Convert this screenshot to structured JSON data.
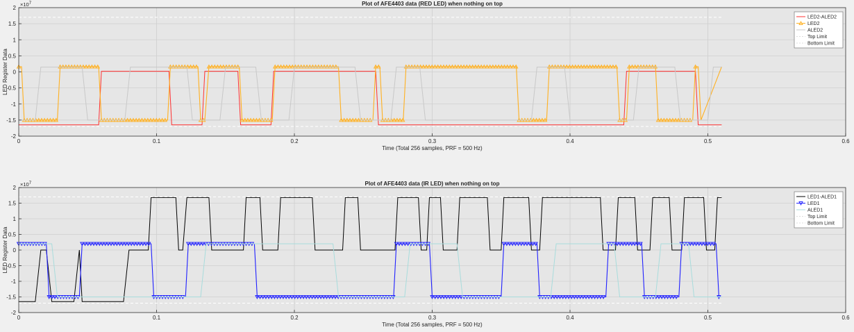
{
  "colors": {
    "figure_bg": "#f0f0f0",
    "axes_bg": "#e6e6e6",
    "grid": "#cfcfcf",
    "axis": "#333333",
    "text": "#222222"
  },
  "chart_data": [
    {
      "type": "line",
      "title": "Plot of AFE4403 data (RED LED) when nothing on top",
      "xlabel": "Time (Total 256 samples, PRF = 500 Hz)",
      "ylabel": "LED Register Data",
      "exponent_label": "10",
      "exponent_power": "7",
      "xlim": [
        0,
        0.6
      ],
      "ylim": [
        -20000000,
        20000000
      ],
      "x_ticks": [
        0,
        0.1,
        0.2,
        0.3,
        0.4,
        0.5,
        0.6
      ],
      "x_tick_labels": [
        "0",
        "0.1",
        "0.2",
        "0.3",
        "0.4",
        "0.5",
        "0.6"
      ],
      "y_ticks": [
        -20000000,
        -15000000,
        -10000000,
        -5000000,
        0,
        5000000,
        10000000,
        15000000,
        20000000
      ],
      "y_tick_labels": [
        "-2",
        "-1.5",
        "-1",
        "-0.5",
        "0",
        "0.5",
        "1",
        "1.5",
        "2"
      ],
      "grid": true,
      "legend_position": "top-right",
      "series": [
        {
          "name": "LED2-ALED2",
          "color": "#ff3030",
          "marker": "none",
          "x": [
            0,
            0.058,
            0.06,
            0.109,
            0.111,
            0.133,
            0.135,
            0.159,
            0.161,
            0.183,
            0.185,
            0.259,
            0.261,
            0.439,
            0.441,
            0.491,
            0.493,
            0.51
          ],
          "y": [
            -16500000,
            -16500000,
            200000,
            200000,
            -16500000,
            -16500000,
            200000,
            200000,
            -16500000,
            -16500000,
            200000,
            200000,
            -16500000,
            -16500000,
            200000,
            200000,
            -16500000,
            -16500000
          ]
        },
        {
          "name": "LED2",
          "color": "#ffb020",
          "marker": "triangle-up",
          "x": [
            0,
            0.002,
            0.004,
            0.028,
            0.03,
            0.058,
            0.06,
            0.108,
            0.11,
            0.13,
            0.132,
            0.135,
            0.138,
            0.16,
            0.162,
            0.184,
            0.186,
            0.232,
            0.234,
            0.257,
            0.259,
            0.262,
            0.264,
            0.279,
            0.281,
            0.361,
            0.363,
            0.383,
            0.385,
            0.434,
            0.436,
            0.441,
            0.443,
            0.462,
            0.464,
            0.489,
            0.491,
            0.493,
            0.495,
            0.51
          ],
          "y": [
            1600000,
            1600000,
            -15000000,
            -15000000,
            1600000,
            1600000,
            -15000000,
            -15000000,
            1600000,
            1600000,
            -15000000,
            -15000000,
            1600000,
            1600000,
            -15000000,
            -15000000,
            1600000,
            1600000,
            -15000000,
            -15000000,
            1600000,
            1600000,
            -15000000,
            -15000000,
            1600000,
            1600000,
            -15000000,
            -15000000,
            1600000,
            1600000,
            -15000000,
            -15000000,
            1600000,
            1600000,
            -15000000,
            -15000000,
            1600000,
            1600000,
            -15000000,
            1600000
          ]
        },
        {
          "name": "ALED2",
          "color": "#c8c8c8",
          "marker": "none",
          "x": [
            0,
            0.012,
            0.016,
            0.046,
            0.05,
            0.077,
            0.081,
            0.122,
            0.126,
            0.146,
            0.15,
            0.172,
            0.176,
            0.196,
            0.2,
            0.244,
            0.248,
            0.27,
            0.274,
            0.291,
            0.295,
            0.372,
            0.376,
            0.396,
            0.4,
            0.446,
            0.45,
            0.476,
            0.48,
            0.5,
            0.504,
            0.51
          ],
          "y": [
            -15000000,
            -15000000,
            1500000,
            1500000,
            -15000000,
            -15000000,
            1500000,
            1500000,
            -15000000,
            -15000000,
            1500000,
            1500000,
            -15000000,
            -15000000,
            1500000,
            1500000,
            -15000000,
            -15000000,
            1500000,
            1500000,
            -15000000,
            -15000000,
            1500000,
            1500000,
            -15000000,
            -15000000,
            1500000,
            1500000,
            -15000000,
            -15000000,
            1500000,
            1500000
          ]
        },
        {
          "name": "Top Limit",
          "color": "#ffffff",
          "marker": "none",
          "dashed": true,
          "x": [
            0,
            0.51
          ],
          "y": [
            17000000,
            17000000
          ]
        },
        {
          "name": "Bottom Limit",
          "color": "#ffffff",
          "marker": "none",
          "dashed": true,
          "x": [
            0,
            0.51
          ],
          "y": [
            -17000000,
            -17000000
          ]
        }
      ]
    },
    {
      "type": "line",
      "title": "Plot of AFE4403 data (IR LED) when nothing on top",
      "xlabel": "Time (Total 256 samples, PRF = 500 Hz)",
      "ylabel": "LED Register Data",
      "exponent_label": "10",
      "exponent_power": "7",
      "xlim": [
        0,
        0.6
      ],
      "ylim": [
        -20000000,
        20000000
      ],
      "x_ticks": [
        0,
        0.1,
        0.2,
        0.3,
        0.4,
        0.5,
        0.6
      ],
      "x_tick_labels": [
        "0",
        "0.1",
        "0.2",
        "0.3",
        "0.4",
        "0.5",
        "0.6"
      ],
      "y_ticks": [
        -20000000,
        -15000000,
        -10000000,
        -5000000,
        0,
        5000000,
        10000000,
        15000000,
        20000000
      ],
      "y_tick_labels": [
        "-2",
        "-1.5",
        "-1",
        "-0.5",
        "0",
        "0.5",
        "1",
        "1.5",
        "2"
      ],
      "grid": true,
      "legend_position": "top-right",
      "series": [
        {
          "name": "LED1-ALED1",
          "color": "#000000",
          "marker": "none",
          "x": [
            0,
            0.012,
            0.016,
            0.02,
            0.024,
            0.04,
            0.044,
            0.046,
            0.05,
            0.076,
            0.08,
            0.094,
            0.096,
            0.114,
            0.116,
            0.119,
            0.122,
            0.138,
            0.14,
            0.163,
            0.165,
            0.175,
            0.177,
            0.188,
            0.19,
            0.213,
            0.215,
            0.235,
            0.237,
            0.246,
            0.248,
            0.273,
            0.275,
            0.29,
            0.292,
            0.296,
            0.298,
            0.306,
            0.308,
            0.318,
            0.32,
            0.34,
            0.342,
            0.35,
            0.352,
            0.37,
            0.372,
            0.378,
            0.38,
            0.422,
            0.424,
            0.433,
            0.435,
            0.447,
            0.449,
            0.458,
            0.46,
            0.472,
            0.474,
            0.481,
            0.483,
            0.497,
            0.499,
            0.505,
            0.507,
            0.51
          ],
          "y": [
            -16500000,
            -16500000,
            0,
            0,
            -16500000,
            -16500000,
            0,
            -16500000,
            -16500000,
            -16500000,
            0,
            0,
            16800000,
            16800000,
            0,
            0,
            16800000,
            16800000,
            0,
            0,
            16800000,
            16800000,
            0,
            0,
            16800000,
            16800000,
            0,
            0,
            16800000,
            16800000,
            0,
            0,
            16800000,
            16800000,
            0,
            0,
            16800000,
            16800000,
            0,
            0,
            16800000,
            16800000,
            0,
            0,
            16800000,
            16800000,
            0,
            0,
            16800000,
            16800000,
            0,
            0,
            16800000,
            16800000,
            0,
            0,
            16800000,
            16800000,
            0,
            0,
            16800000,
            16800000,
            0,
            0,
            16800000,
            16800000
          ]
        },
        {
          "name": "LED1",
          "color": "#2020ff",
          "marker": "triangle-down",
          "x": [
            0,
            0.02,
            0.022,
            0.044,
            0.046,
            0.096,
            0.098,
            0.121,
            0.123,
            0.171,
            0.173,
            0.272,
            0.274,
            0.298,
            0.3,
            0.35,
            0.352,
            0.376,
            0.378,
            0.426,
            0.428,
            0.452,
            0.454,
            0.479,
            0.481,
            0.506,
            0.508,
            0.51
          ],
          "y": [
            2000000,
            2000000,
            -15000000,
            -15000000,
            2000000,
            2000000,
            -15000000,
            -15000000,
            2000000,
            2000000,
            -15000000,
            -15000000,
            2000000,
            2000000,
            -15000000,
            -15000000,
            2000000,
            2000000,
            -15000000,
            -15000000,
            2000000,
            2000000,
            -15000000,
            -15000000,
            2000000,
            2000000,
            -15000000,
            -15000000
          ]
        },
        {
          "name": "ALED1",
          "color": "#a8dcdc",
          "marker": "none",
          "x": [
            0,
            0.024,
            0.028,
            0.132,
            0.136,
            0.228,
            0.232,
            0.28,
            0.284,
            0.318,
            0.322,
            0.386,
            0.39,
            0.432,
            0.436,
            0.462,
            0.466,
            0.486,
            0.49,
            0.51
          ],
          "y": [
            2000000,
            2000000,
            -15000000,
            -15000000,
            2000000,
            2000000,
            -15000000,
            -15000000,
            2000000,
            2000000,
            -15000000,
            -15000000,
            2000000,
            2000000,
            -15000000,
            -15000000,
            2000000,
            2000000,
            -15000000,
            -15000000
          ]
        },
        {
          "name": "Top Limit",
          "color": "#ffffff",
          "marker": "none",
          "dashed": true,
          "x": [
            0,
            0.51
          ],
          "y": [
            17000000,
            17000000
          ]
        },
        {
          "name": "Bottom Limit",
          "color": "#ffffff",
          "marker": "none",
          "dashed": true,
          "x": [
            0,
            0.51
          ],
          "y": [
            -17000000,
            -17000000
          ]
        }
      ]
    }
  ]
}
